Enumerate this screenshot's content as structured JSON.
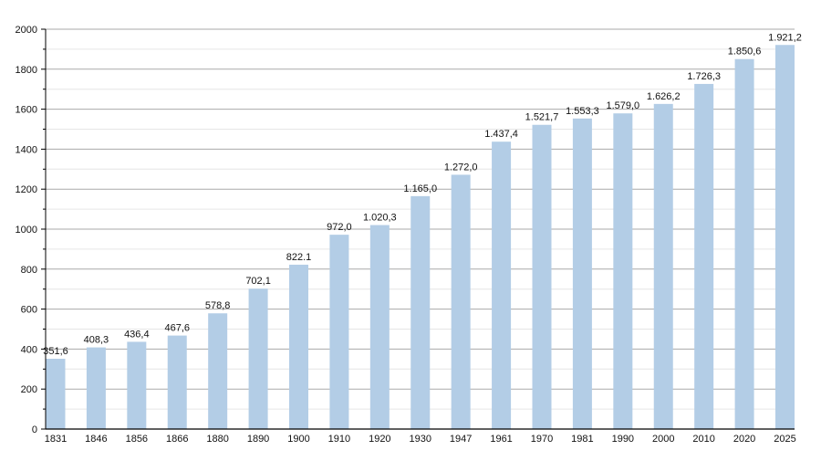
{
  "chart_data": {
    "type": "bar",
    "title": "",
    "xlabel": "",
    "ylabel": "",
    "ylim": [
      0,
      2000
    ],
    "y_ticks": [
      0,
      200,
      400,
      600,
      800,
      1000,
      1200,
      1400,
      1600,
      1800,
      2000
    ],
    "grid": true,
    "bar_color": "#b3cde6",
    "categories": [
      "1831",
      "1846",
      "1856",
      "1866",
      "1880",
      "1890",
      "1900",
      "1910",
      "1920",
      "1930",
      "1947",
      "1961",
      "1970",
      "1981",
      "1990",
      "2000",
      "2010",
      "2020",
      "2025"
    ],
    "values": [
      351.6,
      408.3,
      436.4,
      467.6,
      578.8,
      702.1,
      822.1,
      972.0,
      1020.3,
      1165.0,
      1272.0,
      1437.4,
      1521.7,
      1553.3,
      1579.0,
      1626.2,
      1726.3,
      1850.6,
      1921.2
    ],
    "data_labels": [
      "351,6",
      "408,3",
      "436,4",
      "467,6",
      "578,8",
      "702,1",
      "822.1",
      "972,0",
      "1.020,3",
      "1.165,0",
      "1.272,0",
      "1.437,4",
      "1.521,7",
      "1.553,3",
      "1.579,0",
      "1.626,2",
      "1.726,3",
      "1.850,6",
      "1.921,2"
    ]
  }
}
